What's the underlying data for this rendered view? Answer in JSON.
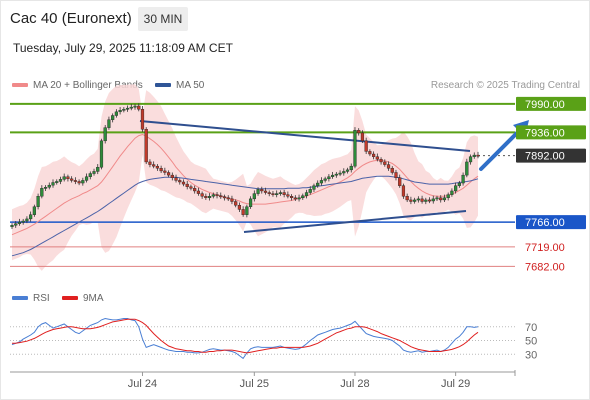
{
  "header": {
    "title": "Cac 40 (Euronext)",
    "timeframe": "30 MIN"
  },
  "datetime": "Tuesday, July 29, 2025 11:18:09 AM CET",
  "credit": "Research © 2025 Trading Central",
  "legend": [
    {
      "label": "MA 20 + Bollinger Bands",
      "color": "#f08a8a"
    },
    {
      "label": "MA 50",
      "color": "#2f5597"
    }
  ],
  "rsi_legend": [
    {
      "label": "RSI",
      "color": "#4a7fd4"
    },
    {
      "label": "9MA",
      "color": "#e02020"
    }
  ],
  "chart_data": [
    {
      "type": "candlestick",
      "x_tick_labels": [
        "Jul 24",
        "Jul 25",
        "Jul 28",
        "Jul 29"
      ],
      "ylim": [
        7660,
        8005
      ],
      "price_levels": [
        {
          "label": "7990.00",
          "value": 7990,
          "kind": "resistance",
          "color": "#5aa117"
        },
        {
          "label": "7936.00",
          "value": 7936,
          "kind": "resistance",
          "color": "#5aa117"
        },
        {
          "label": "7892.00",
          "value": 7892,
          "kind": "current",
          "color": "#333333"
        },
        {
          "label": "7766.00",
          "value": 7766,
          "kind": "support",
          "color": "#1a56c8"
        },
        {
          "label": "7719.00",
          "value": 7719,
          "kind": "support",
          "color": "#e08080"
        },
        {
          "label": "7682.00",
          "value": 7682,
          "kind": "support",
          "color": "#e08080"
        }
      ],
      "series": [
        {
          "name": "MA 20 + Bollinger Bands",
          "color": "#f08a8a"
        },
        {
          "name": "MA 50",
          "color": "#2f5597"
        }
      ],
      "close": [
        7760,
        7763,
        7766,
        7768,
        7772,
        7780,
        7795,
        7815,
        7830,
        7832,
        7836,
        7841,
        7843,
        7847,
        7852,
        7848,
        7845,
        7843,
        7840,
        7845,
        7852,
        7858,
        7862,
        7870,
        7920,
        7945,
        7960,
        7968,
        7975,
        7978,
        7980,
        7982,
        7984,
        7986,
        7980,
        7942,
        7880,
        7875,
        7872,
        7868,
        7863,
        7860,
        7855,
        7850,
        7845,
        7842,
        7838,
        7833,
        7830,
        7825,
        7820,
        7815,
        7812,
        7815,
        7818,
        7816,
        7814,
        7812,
        7810,
        7805,
        7798,
        7790,
        7780,
        7795,
        7810,
        7820,
        7828,
        7825,
        7822,
        7820,
        7818,
        7820,
        7822,
        7818,
        7815,
        7812,
        7810,
        7812,
        7816,
        7822,
        7828,
        7835,
        7840,
        7845,
        7848,
        7852,
        7855,
        7857,
        7859,
        7862,
        7865,
        7872,
        7940,
        7935,
        7920,
        7900,
        7895,
        7890,
        7885,
        7880,
        7875,
        7868,
        7860,
        7850,
        7835,
        7815,
        7808,
        7805,
        7808,
        7810,
        7805,
        7808,
        7806,
        7810,
        7812,
        7808,
        7812,
        7818,
        7825,
        7835,
        7840,
        7855,
        7880,
        7890,
        7893,
        7892
      ],
      "ma20": [
        7742,
        7745,
        7748,
        7751,
        7754,
        7758,
        7762,
        7767,
        7772,
        7777,
        7782,
        7787,
        7792,
        7797,
        7802,
        7806,
        7810,
        7813,
        7816,
        7820,
        7823,
        7827,
        7831,
        7835,
        7842,
        7851,
        7861,
        7871,
        7881,
        7891,
        7900,
        7909,
        7917,
        7925,
        7930,
        7932,
        7929,
        7924,
        7919,
        7913,
        7906,
        7898,
        7889,
        7880,
        7870,
        7862,
        7854,
        7847,
        7841,
        7836,
        7832,
        7828,
        7825,
        7822,
        7820,
        7818,
        7816,
        7814,
        7812,
        7810,
        7808,
        7806,
        7803,
        7801,
        7800,
        7800,
        7800,
        7800,
        7800,
        7801,
        7802,
        7803,
        7804,
        7805,
        7806,
        7807,
        7809,
        7811,
        7813,
        7815,
        7818,
        7821,
        7824,
        7827,
        7830,
        7833,
        7836,
        7839,
        7842,
        7846,
        7850,
        7855,
        7862,
        7868,
        7873,
        7877,
        7880,
        7882,
        7883,
        7883,
        7882,
        7880,
        7877,
        7872,
        7866,
        7858,
        7850,
        7843,
        7836,
        7830,
        7825,
        7821,
        7818,
        7816,
        7815,
        7815,
        7815,
        7817,
        7819,
        7822,
        7826,
        7830,
        7836,
        7842,
        7848,
        7853
      ],
      "ma50": [
        7702,
        7704,
        7706,
        7708,
        7711,
        7714,
        7718,
        7722,
        7726,
        7730,
        7734,
        7738,
        7742,
        7746,
        7750,
        7754,
        7758,
        7762,
        7766,
        7770,
        7774,
        7778,
        7782,
        7786,
        7791,
        7796,
        7801,
        7806,
        7811,
        7816,
        7821,
        7826,
        7831,
        7836,
        7840,
        7843,
        7845,
        7847,
        7848,
        7849,
        7850,
        7851,
        7851,
        7851,
        7851,
        7850,
        7849,
        7848,
        7847,
        7846,
        7845,
        7844,
        7843,
        7842,
        7841,
        7840,
        7839,
        7838,
        7837,
        7836,
        7835,
        7834,
        7833,
        7832,
        7831,
        7830,
        7829,
        7829,
        7829,
        7829,
        7829,
        7829,
        7829,
        7829,
        7830,
        7830,
        7830,
        7830,
        7831,
        7831,
        7832,
        7833,
        7834,
        7835,
        7836,
        7837,
        7838,
        7839,
        7840,
        7841,
        7842,
        7843,
        7845,
        7847,
        7849,
        7850,
        7851,
        7852,
        7853,
        7853,
        7853,
        7853,
        7852,
        7851,
        7850,
        7848,
        7846,
        7844,
        7842,
        7841,
        7840,
        7839,
        7838,
        7838,
        7838,
        7838,
        7838,
        7838,
        7839,
        7840,
        7841,
        7842,
        7843,
        7844,
        7846,
        7848
      ]
    },
    {
      "type": "line",
      "ylim": [
        10,
        90
      ],
      "y_tick_labels": [
        "70",
        "50",
        "30"
      ],
      "y_ticks": [
        70,
        50,
        30
      ],
      "series": [
        {
          "name": "RSI",
          "color": "#4a7fd4"
        },
        {
          "name": "9MA",
          "color": "#e02020"
        }
      ],
      "rsi": [
        44,
        46,
        48,
        52,
        55,
        58,
        62,
        70,
        74,
        76,
        72,
        68,
        70,
        72,
        74,
        70,
        66,
        62,
        60,
        64,
        68,
        72,
        74,
        76,
        80,
        82,
        81,
        80,
        80,
        81,
        82,
        82,
        80,
        79,
        70,
        52,
        40,
        42,
        44,
        42,
        40,
        38,
        36,
        35,
        34,
        34,
        34,
        33,
        33,
        32,
        32,
        33,
        35,
        37,
        38,
        37,
        36,
        36,
        35,
        34,
        32,
        28,
        24,
        32,
        38,
        40,
        41,
        40,
        40,
        40,
        40,
        41,
        42,
        40,
        39,
        38,
        37,
        38,
        41,
        45,
        50,
        54,
        58,
        60,
        62,
        64,
        66,
        67,
        68,
        70,
        72,
        74,
        78,
        72,
        66,
        60,
        58,
        56,
        55,
        54,
        53,
        52,
        50,
        46,
        42,
        36,
        34,
        33,
        34,
        35,
        33,
        34,
        34,
        35,
        36,
        34,
        36,
        40,
        46,
        52,
        56,
        62,
        70,
        70,
        69,
        70
      ],
      "rsi_ma": [
        46,
        46,
        47,
        48,
        49,
        51,
        53,
        56,
        59,
        62,
        64,
        66,
        67,
        68,
        69,
        70,
        70,
        69,
        68,
        67,
        67,
        67,
        68,
        69,
        71,
        73,
        75,
        77,
        78,
        79,
        80,
        81,
        81,
        81,
        79,
        76,
        72,
        66,
        60,
        55,
        50,
        46,
        42,
        40,
        38,
        37,
        36,
        35,
        35,
        34,
        34,
        33,
        33,
        34,
        34,
        35,
        35,
        36,
        36,
        36,
        35,
        34,
        33,
        32,
        33,
        34,
        35,
        36,
        37,
        38,
        39,
        39,
        40,
        40,
        40,
        40,
        40,
        40,
        40,
        41,
        42,
        44,
        46,
        49,
        52,
        55,
        58,
        61,
        63,
        65,
        67,
        68,
        70,
        70,
        70,
        69,
        67,
        65,
        63,
        60,
        58,
        56,
        54,
        52,
        50,
        47,
        44,
        41,
        39,
        37,
        36,
        35,
        34,
        34,
        34,
        34,
        35,
        36,
        37,
        39,
        41,
        44,
        48,
        53,
        58,
        62
      ]
    }
  ]
}
